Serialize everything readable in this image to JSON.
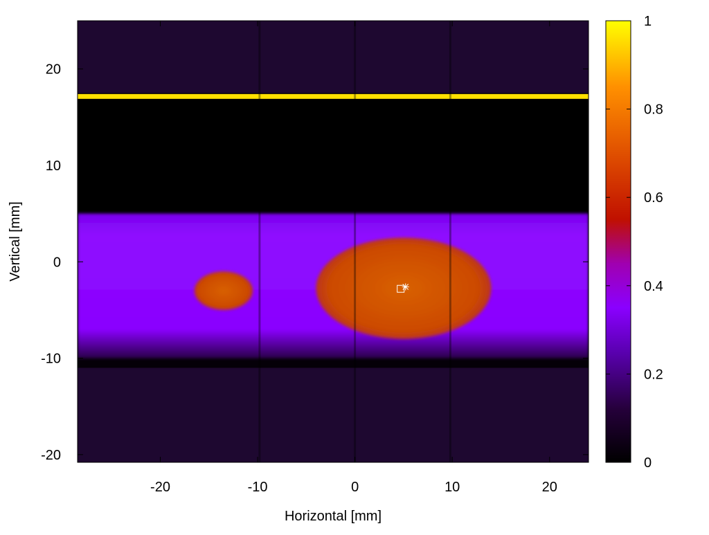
{
  "chart_data": {
    "type": "heatmap",
    "title": "",
    "xlabel": "Horizontal [mm]",
    "ylabel": "Vertical [mm]",
    "xlim": [
      -28.5,
      24
    ],
    "ylim": [
      -20.8,
      25
    ],
    "xticks": [
      -20,
      -10,
      0,
      10,
      20
    ],
    "yticks": [
      -20,
      -10,
      0,
      10,
      20
    ],
    "colorbar": {
      "range": [
        0,
        1
      ],
      "ticks": [
        0,
        0.2,
        0.4,
        0.6,
        0.8,
        1
      ],
      "palette": [
        "#000000",
        "#3a005a",
        "#8000ff",
        "#c02020",
        "#ff8000",
        "#ffff00"
      ]
    },
    "regions": [
      {
        "name": "upper-faint-band",
        "x": [
          -28.5,
          24
        ],
        "y": [
          17.5,
          25
        ],
        "value": 0.06
      },
      {
        "name": "dark-gap",
        "x": [
          -28.5,
          24
        ],
        "y": [
          5,
          17
        ],
        "value": 0.0
      },
      {
        "name": "bright-line",
        "x": [
          -28.5,
          24
        ],
        "y": [
          16.9,
          17.4
        ],
        "value": 1.0
      },
      {
        "name": "beam-band",
        "x": [
          -28.5,
          24
        ],
        "y": [
          -10,
          5
        ],
        "value": 0.3
      },
      {
        "name": "lower-faint-band",
        "x": [
          -28.5,
          24
        ],
        "y": [
          -20.8,
          -11
        ],
        "value": 0.06
      },
      {
        "name": "hot-spot-left",
        "x": [
          -16.5,
          -10.5
        ],
        "y": [
          -5,
          -1
        ],
        "value": 0.68
      },
      {
        "name": "hot-spot-center",
        "x": [
          -4,
          14
        ],
        "y": [
          -8,
          2.5
        ],
        "value": 0.7
      }
    ],
    "markers": [
      {
        "shape": "square",
        "x": 4.7,
        "y": -2.8
      },
      {
        "shape": "star",
        "x": 5.2,
        "y": -2.6
      }
    ]
  }
}
